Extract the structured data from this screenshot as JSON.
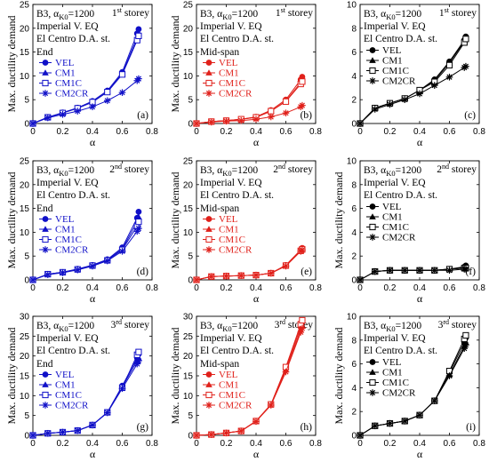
{
  "figure": {
    "marker_order": [
      "circle",
      "triangle",
      "square-open",
      "star"
    ]
  },
  "chart_data": [
    {
      "id": "a",
      "type": "line",
      "color": "#1010c8",
      "panel_label": "(a)",
      "case": "B3, α",
      "case_sub": "K0",
      "case_value": "=1200",
      "eq": "Imperial V. EQ",
      "station": "El Centro D.A. st.",
      "storey_num": "1",
      "storey_sup": "st",
      "storey_word": " storey",
      "location": "End",
      "location_color": "#1010c8",
      "ylim": [
        0,
        25
      ],
      "yticks": [
        0,
        5,
        10,
        15,
        20,
        25
      ],
      "xlim": [
        0,
        0.8
      ],
      "xticks": [
        0,
        0.2,
        0.4,
        0.6,
        0.8
      ],
      "xtick_labels": [
        "0",
        "0.2",
        "0.4",
        "0.6",
        "0.8"
      ],
      "xlabel": "α",
      "ylabel": "Max. ductility demand",
      "x": [
        0,
        0.1,
        0.2,
        0.3,
        0.4,
        0.5,
        0.6,
        0.7,
        0.71
      ],
      "series": [
        {
          "name": "VEL",
          "values": [
            0,
            1.3,
            2.3,
            3.3,
            4.7,
            6.9,
            10.8,
            18.9,
            19.8
          ]
        },
        {
          "name": "CM1",
          "values": [
            0,
            1.3,
            2.2,
            3.2,
            4.5,
            6.7,
            10.5,
            18.0,
            19.0
          ]
        },
        {
          "name": "CM1C",
          "values": [
            0,
            1.3,
            2.2,
            3.2,
            4.5,
            6.6,
            10.3,
            17.5,
            18.4
          ]
        },
        {
          "name": "CM2CR",
          "values": [
            0,
            1.2,
            1.9,
            2.6,
            3.5,
            4.8,
            6.5,
            9.0,
            9.4
          ]
        }
      ]
    },
    {
      "id": "b",
      "type": "line",
      "color": "#e0201a",
      "panel_label": "(b)",
      "case": "B3, α",
      "case_sub": "K0",
      "case_value": "=1200",
      "eq": "Imperial V. EQ",
      "station": "El Centro D.A. st.",
      "storey_num": "1",
      "storey_sup": "st",
      "storey_word": " storey",
      "location": "Mid-span",
      "location_color": "#e0201a",
      "ylim": [
        0,
        25
      ],
      "yticks": [
        0,
        5,
        10,
        15,
        20,
        25
      ],
      "xlim": [
        0,
        0.8
      ],
      "xticks": [
        0,
        0.2,
        0.4,
        0.6,
        0.8
      ],
      "xtick_labels": [
        "0",
        "0.2",
        "0.4",
        "0.6",
        "0.8"
      ],
      "xlabel": "α",
      "ylabel": "Max. ductility demand",
      "x": [
        0,
        0.1,
        0.2,
        0.3,
        0.4,
        0.5,
        0.6,
        0.7,
        0.71
      ],
      "series": [
        {
          "name": "VEL",
          "values": [
            0,
            0.4,
            0.6,
            0.9,
            1.4,
            2.8,
            5.0,
            9.2,
            9.8
          ]
        },
        {
          "name": "CM1",
          "values": [
            0,
            0.4,
            0.6,
            0.9,
            1.3,
            2.6,
            4.7,
            8.6,
            9.1
          ]
        },
        {
          "name": "CM1C",
          "values": [
            0,
            0.4,
            0.6,
            0.9,
            1.3,
            2.6,
            4.6,
            8.3,
            8.8
          ]
        },
        {
          "name": "CM2CR",
          "values": [
            0,
            0.3,
            0.5,
            0.6,
            0.9,
            1.4,
            2.2,
            3.5,
            3.8
          ]
        }
      ]
    },
    {
      "id": "c",
      "type": "line",
      "color": "#000000",
      "panel_label": "(c)",
      "case": "B3, α",
      "case_sub": "K0",
      "case_value": "=1200",
      "eq": "Imperial V. EQ",
      "station": "El Centro D.A. st.",
      "storey_num": "1",
      "storey_sup": "st",
      "storey_word": " storey",
      "location": "",
      "location_color": "#000000",
      "ylim": [
        0,
        10
      ],
      "yticks": [
        0,
        2,
        4,
        6,
        8,
        10
      ],
      "xlim": [
        0,
        0.8
      ],
      "xticks": [
        0,
        0.2,
        0.4,
        0.6,
        0.8
      ],
      "xtick_labels": [
        "0",
        "0.2",
        "0.4",
        "0.6",
        "0.8"
      ],
      "xlabel": "α",
      "ylabel": "",
      "x": [
        0,
        0.1,
        0.2,
        0.3,
        0.4,
        0.5,
        0.6,
        0.7,
        0.71
      ],
      "series": [
        {
          "name": "VEL",
          "values": [
            0,
            1.3,
            1.7,
            2.1,
            2.8,
            3.7,
            5.2,
            7.0,
            7.3
          ]
        },
        {
          "name": "CM1",
          "values": [
            0,
            1.3,
            1.7,
            2.1,
            2.8,
            3.6,
            5.1,
            6.9,
            7.2
          ]
        },
        {
          "name": "CM1C",
          "values": [
            0,
            1.3,
            1.7,
            2.1,
            2.8,
            3.5,
            4.9,
            6.8,
            7.1
          ]
        },
        {
          "name": "CM2CR",
          "values": [
            0,
            1.2,
            1.6,
            2.0,
            2.5,
            3.2,
            3.9,
            4.7,
            4.8
          ]
        }
      ]
    },
    {
      "id": "d",
      "type": "line",
      "color": "#1010c8",
      "panel_label": "(d)",
      "case": "B3, α",
      "case_sub": "K0",
      "case_value": "=1200",
      "eq": "Imperial V. EQ",
      "station": "El Centro D.A. st.",
      "storey_num": "2",
      "storey_sup": "nd",
      "storey_word": " storey",
      "location": "End",
      "location_color": "#1010c8",
      "ylim": [
        0,
        25
      ],
      "yticks": [
        0,
        5,
        10,
        15,
        20,
        25
      ],
      "xlim": [
        0,
        0.8
      ],
      "xticks": [
        0,
        0.2,
        0.4,
        0.6,
        0.8
      ],
      "xtick_labels": [
        "0",
        "0.2",
        "0.4",
        "0.6",
        "0.8"
      ],
      "xlabel": "α",
      "ylabel": "Max. ductility demand",
      "x": [
        0,
        0.1,
        0.2,
        0.3,
        0.4,
        0.5,
        0.6,
        0.7,
        0.71
      ],
      "series": [
        {
          "name": "VEL",
          "values": [
            0,
            1.2,
            1.6,
            2.3,
            3.1,
            4.3,
            6.8,
            13.0,
            14.3
          ]
        },
        {
          "name": "CM1",
          "values": [
            0,
            1.2,
            1.6,
            2.2,
            3.0,
            4.2,
            6.5,
            12.2,
            13.2
          ]
        },
        {
          "name": "CM1C",
          "values": [
            0,
            1.2,
            1.6,
            2.2,
            3.0,
            4.1,
            6.3,
            11.3,
            12.2
          ]
        },
        {
          "name": "CM2CR",
          "values": [
            0,
            1.1,
            1.5,
            2.1,
            2.9,
            4.0,
            6.0,
            10.2,
            10.8
          ]
        }
      ]
    },
    {
      "id": "e",
      "type": "line",
      "color": "#e0201a",
      "panel_label": "(e)",
      "case": "B3, α",
      "case_sub": "K0",
      "case_value": "=1200",
      "eq": "Imperial V. EQ",
      "station": "El Centro D.A. st.",
      "storey_num": "2",
      "storey_sup": "nd",
      "storey_word": " storey",
      "location": "Mid-span",
      "location_color": "#e0201a",
      "ylim": [
        0,
        25
      ],
      "yticks": [
        0,
        5,
        10,
        15,
        20,
        25
      ],
      "xlim": [
        0,
        0.8
      ],
      "xticks": [
        0,
        0.2,
        0.4,
        0.6,
        0.8
      ],
      "xtick_labels": [
        "0",
        "0.2",
        "0.4",
        "0.6",
        "0.8"
      ],
      "xlabel": "α",
      "ylabel": "Max. ductility demand",
      "x": [
        0,
        0.1,
        0.2,
        0.3,
        0.4,
        0.5,
        0.6,
        0.7,
        0.71
      ],
      "series": [
        {
          "name": "VEL",
          "values": [
            0,
            0.7,
            0.8,
            0.9,
            1.0,
            1.4,
            3.1,
            6.3,
            6.7
          ]
        },
        {
          "name": "CM1",
          "values": [
            0,
            0.7,
            0.8,
            0.9,
            1.0,
            1.4,
            3.0,
            6.2,
            6.5
          ]
        },
        {
          "name": "CM1C",
          "values": [
            0,
            0.7,
            0.8,
            0.9,
            1.0,
            1.4,
            3.0,
            6.1,
            6.4
          ]
        },
        {
          "name": "CM2CR",
          "values": [
            0,
            0.7,
            0.8,
            0.9,
            1.0,
            1.4,
            2.9,
            6.0,
            6.3
          ]
        }
      ]
    },
    {
      "id": "f",
      "type": "line",
      "color": "#000000",
      "panel_label": "(f)",
      "case": "B3, α",
      "case_sub": "K0",
      "case_value": "=1200",
      "eq": "Imperial V. EQ",
      "station": "El Centro D.A. st.",
      "storey_num": "2",
      "storey_sup": "nd",
      "storey_word": " storey",
      "location": "",
      "location_color": "#000000",
      "ylim": [
        0,
        10
      ],
      "yticks": [
        0,
        2,
        4,
        6,
        8,
        10
      ],
      "xlim": [
        0,
        0.8
      ],
      "xticks": [
        0,
        0.2,
        0.4,
        0.6,
        0.8
      ],
      "xtick_labels": [
        "0",
        "0.2",
        "0.4",
        "0.6",
        "0.8"
      ],
      "xlabel": "α",
      "ylabel": "Max. ductility demand",
      "x": [
        0,
        0.1,
        0.2,
        0.3,
        0.4,
        0.5,
        0.6,
        0.7,
        0.71
      ],
      "series": [
        {
          "name": "VEL",
          "values": [
            0,
            0.7,
            0.8,
            0.8,
            0.8,
            0.8,
            0.9,
            1.1,
            1.2
          ]
        },
        {
          "name": "CM1",
          "values": [
            0,
            0.7,
            0.8,
            0.8,
            0.8,
            0.8,
            0.9,
            1.0,
            1.0
          ]
        },
        {
          "name": "CM1C",
          "values": [
            0,
            0.7,
            0.8,
            0.8,
            0.8,
            0.8,
            0.9,
            1.0,
            1.0
          ]
        },
        {
          "name": "CM2CR",
          "values": [
            0,
            0.7,
            0.8,
            0.8,
            0.8,
            0.8,
            0.8,
            0.9,
            0.9
          ]
        }
      ]
    },
    {
      "id": "g",
      "type": "line",
      "color": "#1010c8",
      "panel_label": "(g)",
      "case": "B3, α",
      "case_sub": "K0",
      "case_value": "=1200",
      "eq": "Imperial V. EQ",
      "station": "El Centro D.A. st.",
      "storey_num": "3",
      "storey_sup": "rd",
      "storey_word": " storey",
      "location": "End",
      "location_color": "#1010c8",
      "ylim": [
        0,
        30
      ],
      "yticks": [
        0,
        5,
        10,
        15,
        20,
        25,
        30
      ],
      "xlim": [
        0,
        0.8
      ],
      "xticks": [
        0,
        0.2,
        0.4,
        0.6,
        0.8
      ],
      "xtick_labels": [
        "0",
        "0.2",
        "0.4",
        "0.6",
        "0.8"
      ],
      "xlabel": "α",
      "ylabel": "Max. ductility demand",
      "x": [
        0,
        0.1,
        0.2,
        0.3,
        0.4,
        0.5,
        0.6,
        0.7,
        0.71
      ],
      "series": [
        {
          "name": "VEL",
          "values": [
            0,
            0.5,
            0.8,
            1.2,
            2.6,
            5.8,
            12.5,
            19.5,
            20.5
          ]
        },
        {
          "name": "CM1",
          "values": [
            0,
            0.5,
            0.8,
            1.2,
            2.6,
            5.8,
            12.2,
            18.8,
            19.5
          ]
        },
        {
          "name": "CM1C",
          "values": [
            0,
            0.5,
            0.8,
            1.2,
            2.6,
            5.8,
            12.0,
            20.3,
            21.0
          ]
        },
        {
          "name": "CM2CR",
          "values": [
            0,
            0.5,
            0.8,
            1.2,
            2.6,
            5.7,
            11.8,
            18.0,
            18.8
          ]
        }
      ]
    },
    {
      "id": "h",
      "type": "line",
      "color": "#e0201a",
      "panel_label": "(h)",
      "case": "B3, α",
      "case_sub": "K0",
      "case_value": "=1200",
      "eq": "Imperial V. EQ",
      "station": "El Centro D.A. st.",
      "storey_num": "3",
      "storey_sup": "rd",
      "storey_word": " storey",
      "location": "Mid-span",
      "location_color": "#e0201a",
      "ylim": [
        0,
        30
      ],
      "yticks": [
        0,
        5,
        10,
        15,
        20,
        25,
        30
      ],
      "xlim": [
        0,
        0.8
      ],
      "xticks": [
        0,
        0.2,
        0.4,
        0.6,
        0.8
      ],
      "xtick_labels": [
        "0",
        "0.2",
        "0.4",
        "0.6",
        "0.8"
      ],
      "xlabel": "α",
      "ylabel": "Max. ductility demand",
      "x": [
        0,
        0.1,
        0.2,
        0.3,
        0.4,
        0.5,
        0.6,
        0.7,
        0.71
      ],
      "series": [
        {
          "name": "VEL",
          "values": [
            0,
            0.2,
            0.6,
            1.1,
            3.6,
            7.8,
            17.0,
            27.3,
            28.5
          ]
        },
        {
          "name": "CM1",
          "values": [
            0,
            0.2,
            0.6,
            1.1,
            3.6,
            7.8,
            16.5,
            26.5,
            27.5
          ]
        },
        {
          "name": "CM1C",
          "values": [
            0,
            0.2,
            0.6,
            1.1,
            3.6,
            7.8,
            17.2,
            28.0,
            29.0
          ]
        },
        {
          "name": "CM2CR",
          "values": [
            0,
            0.2,
            0.6,
            1.1,
            3.5,
            7.6,
            16.0,
            26.0,
            27.0
          ]
        }
      ]
    },
    {
      "id": "i",
      "type": "line",
      "color": "#000000",
      "panel_label": "(i)",
      "case": "B3, α",
      "case_sub": "K0",
      "case_value": "=1200",
      "eq": "Imperial V. EQ",
      "station": "El Centro D.A. st.",
      "storey_num": "3",
      "storey_sup": "rd",
      "storey_word": " storey",
      "location": "",
      "location_color": "#000000",
      "ylim": [
        0,
        10
      ],
      "yticks": [
        0,
        2,
        4,
        6,
        8,
        10
      ],
      "xlim": [
        0,
        0.8
      ],
      "xticks": [
        0,
        0.2,
        0.4,
        0.6,
        0.8
      ],
      "xtick_labels": [
        "0",
        "0.2",
        "0.4",
        "0.6",
        "0.8"
      ],
      "xlabel": "α",
      "ylabel": "Max. ductility demand",
      "x": [
        0,
        0.1,
        0.2,
        0.3,
        0.4,
        0.5,
        0.6,
        0.7,
        0.71
      ],
      "series": [
        {
          "name": "VEL",
          "values": [
            0,
            0.8,
            1.0,
            1.2,
            1.7,
            2.9,
            5.3,
            7.8,
            8.2
          ]
        },
        {
          "name": "CM1",
          "values": [
            0,
            0.8,
            1.0,
            1.2,
            1.7,
            2.9,
            5.1,
            7.5,
            7.8
          ]
        },
        {
          "name": "CM1C",
          "values": [
            0,
            0.8,
            1.0,
            1.2,
            1.7,
            2.9,
            5.4,
            8.1,
            8.4
          ]
        },
        {
          "name": "CM2CR",
          "values": [
            0,
            0.8,
            1.0,
            1.2,
            1.7,
            2.9,
            5.0,
            7.3,
            7.6
          ]
        }
      ]
    }
  ]
}
